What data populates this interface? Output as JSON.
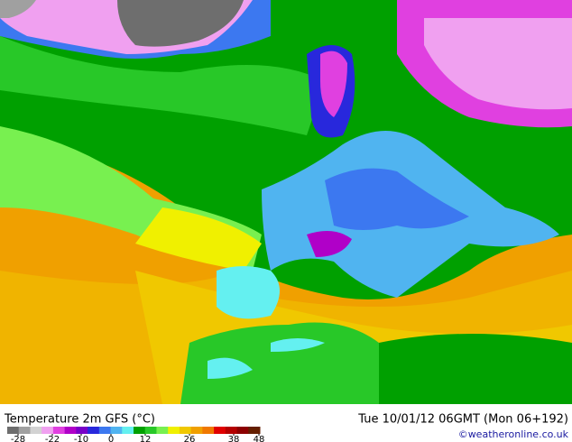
{
  "title": "Temperature 2m GFS (°C)",
  "run": "Tue 10/01/12 06GMT (Mon 06+192)",
  "credit": "©weatheronline.co.uk",
  "legend": {
    "colors": [
      "#6e6e6e",
      "#a0a0a0",
      "#d2d2d2",
      "#f0a0f0",
      "#e040e0",
      "#b000c8",
      "#7800c8",
      "#2828dc",
      "#3c78f0",
      "#50b4f0",
      "#64f0f0",
      "#00a000",
      "#28c828",
      "#78f050",
      "#f0f000",
      "#f0c800",
      "#f0a000",
      "#f07800",
      "#e00000",
      "#b40000",
      "#8c0000",
      "#641e00"
    ],
    "ticks": [
      -28,
      -22,
      -10,
      0,
      12,
      26,
      38,
      48
    ]
  }
}
